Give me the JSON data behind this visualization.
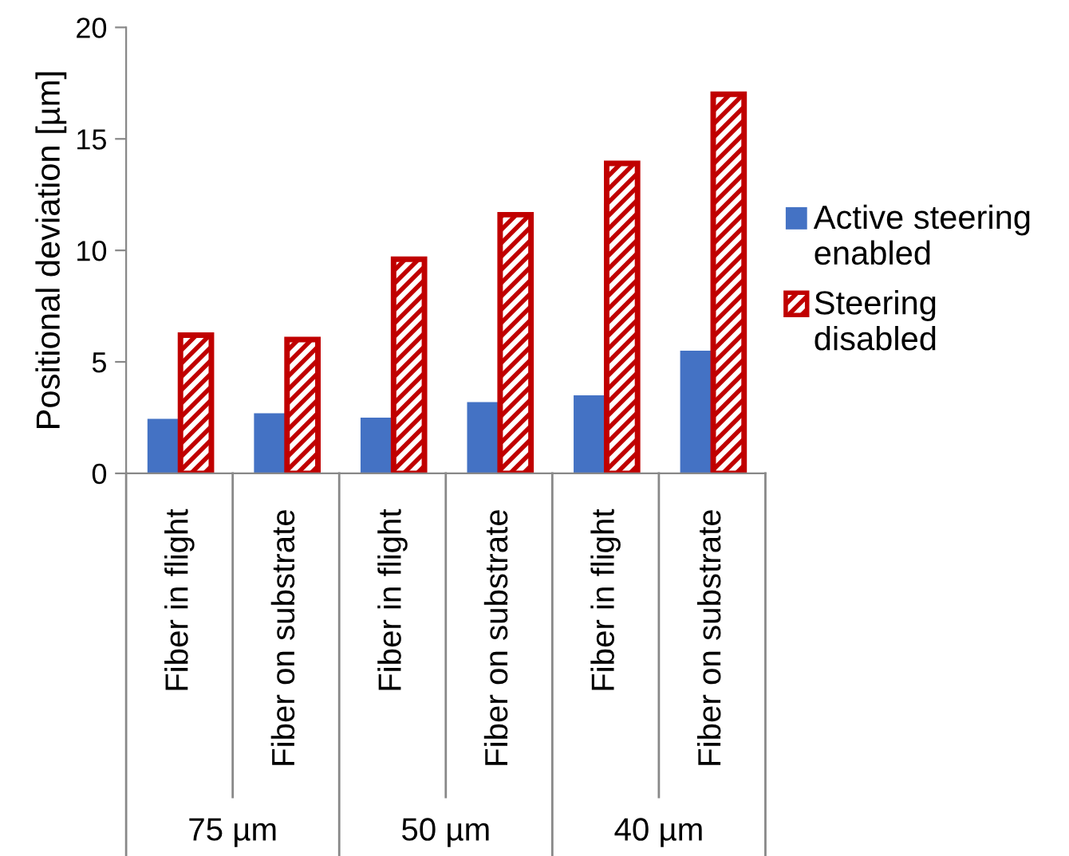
{
  "chart_data": {
    "type": "bar",
    "ylabel": "Positional deviation [µm]",
    "categories": [
      "Fiber in flight",
      "Fiber on substrate",
      "Fiber in flight",
      "Fiber on substrate",
      "Fiber in flight",
      "Fiber on substrate"
    ],
    "series": [
      {
        "name": "Active steering enabled",
        "color": "#4472c4",
        "values": [
          2.45,
          2.7,
          2.5,
          3.2,
          3.5,
          5.5
        ]
      },
      {
        "name": "Steering disabled",
        "color": "#c00000",
        "values": [
          6.2,
          6.0,
          9.6,
          11.6,
          13.9,
          17.0
        ]
      }
    ],
    "annotations": [
      "75 µm",
      "50 µm",
      "40 µm"
    ],
    "ylim": [
      0,
      20
    ],
    "yticks": [
      0,
      5,
      10,
      15,
      20
    ],
    "grid": false,
    "legend": "right"
  }
}
